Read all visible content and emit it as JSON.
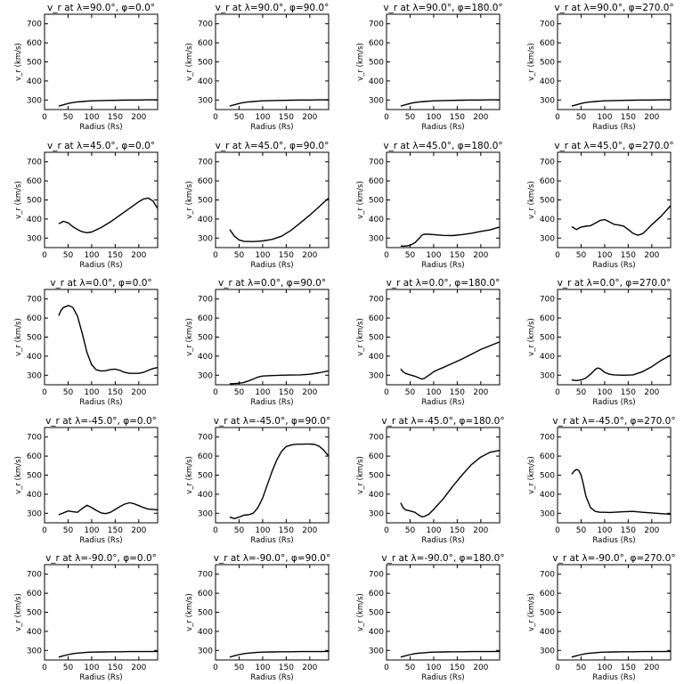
{
  "chart_data": [
    {
      "type": "line",
      "title": "v_r at λ=90.0°, φ=0.0°",
      "xlabel": "Radius (Rs)",
      "ylabel": "v_r (km/s)",
      "xlim": [
        0,
        240
      ],
      "ylim": [
        250,
        750
      ],
      "x": [
        30,
        40,
        50,
        60,
        70,
        80,
        90,
        100,
        120,
        140,
        160,
        180,
        200,
        220,
        240
      ],
      "y": [
        268,
        275,
        282,
        287,
        290,
        292,
        294,
        296,
        297,
        298,
        299,
        300,
        300,
        301,
        301
      ]
    },
    {
      "type": "line",
      "title": "v_r at λ=90.0°, φ=90.0°",
      "xlabel": "Radius (Rs)",
      "ylabel": "v_r (km/s)",
      "xlim": [
        0,
        240
      ],
      "ylim": [
        250,
        750
      ],
      "x": [
        30,
        40,
        50,
        60,
        70,
        80,
        90,
        100,
        120,
        140,
        160,
        180,
        200,
        220,
        240
      ],
      "y": [
        268,
        275,
        282,
        287,
        290,
        292,
        294,
        296,
        297,
        298,
        299,
        300,
        300,
        301,
        301
      ]
    },
    {
      "type": "line",
      "title": "v_r at λ=90.0°, φ=180.0°",
      "xlabel": "Radius (Rs)",
      "ylabel": "v_r (km/s)",
      "xlim": [
        0,
        240
      ],
      "ylim": [
        250,
        750
      ],
      "x": [
        30,
        40,
        50,
        60,
        70,
        80,
        90,
        100,
        120,
        140,
        160,
        180,
        200,
        220,
        240
      ],
      "y": [
        268,
        275,
        282,
        287,
        290,
        292,
        294,
        296,
        297,
        298,
        299,
        300,
        300,
        301,
        301
      ]
    },
    {
      "type": "line",
      "title": "v_r at λ=90.0°, φ=270.0°",
      "xlabel": "Radius (Rs)",
      "ylabel": "v_r (km/s)",
      "xlim": [
        0,
        240
      ],
      "ylim": [
        250,
        750
      ],
      "x": [
        30,
        40,
        50,
        60,
        70,
        80,
        90,
        100,
        120,
        140,
        160,
        180,
        200,
        220,
        240
      ],
      "y": [
        268,
        275,
        282,
        287,
        290,
        292,
        294,
        296,
        297,
        298,
        299,
        300,
        300,
        301,
        301
      ]
    },
    {
      "type": "line",
      "title": "v_r at λ=45.0°, φ=0.0°",
      "xlabel": "Radius (Rs)",
      "ylabel": "v_r (km/s)",
      "xlim": [
        0,
        240
      ],
      "ylim": [
        250,
        750
      ],
      "x": [
        30,
        40,
        50,
        60,
        70,
        80,
        90,
        100,
        120,
        140,
        160,
        180,
        200,
        210,
        220,
        230,
        240
      ],
      "y": [
        375,
        388,
        380,
        360,
        345,
        333,
        328,
        332,
        355,
        385,
        420,
        455,
        490,
        505,
        510,
        495,
        455
      ]
    },
    {
      "type": "line",
      "title": "v_r at λ=45.0°, φ=90.0°",
      "xlabel": "Radius (Rs)",
      "ylabel": "v_r (km/s)",
      "xlim": [
        0,
        240
      ],
      "ylim": [
        250,
        750
      ],
      "x": [
        30,
        40,
        50,
        60,
        70,
        80,
        90,
        100,
        120,
        140,
        160,
        180,
        200,
        220,
        240
      ],
      "y": [
        345,
        310,
        290,
        283,
        282,
        282,
        283,
        285,
        293,
        310,
        340,
        380,
        420,
        465,
        510
      ]
    },
    {
      "type": "line",
      "title": "v_r at λ=45.0°, φ=180.0°",
      "xlabel": "Radius (Rs)",
      "ylabel": "v_r (km/s)",
      "xlim": [
        0,
        240
      ],
      "ylim": [
        250,
        750
      ],
      "x": [
        30,
        40,
        50,
        60,
        70,
        75,
        80,
        90,
        100,
        120,
        140,
        160,
        180,
        200,
        220,
        240
      ],
      "y": [
        258,
        258,
        262,
        275,
        300,
        315,
        320,
        320,
        318,
        314,
        313,
        318,
        325,
        335,
        343,
        358
      ]
    },
    {
      "type": "line",
      "title": "v_r at λ=45.0°, φ=270.0°",
      "xlabel": "Radius (Rs)",
      "ylabel": "v_r (km/s)",
      "xlim": [
        0,
        240
      ],
      "ylim": [
        250,
        750
      ],
      "x": [
        30,
        40,
        50,
        60,
        70,
        80,
        90,
        100,
        110,
        120,
        130,
        140,
        150,
        160,
        170,
        180,
        190,
        200,
        220,
        240
      ],
      "y": [
        360,
        345,
        358,
        362,
        365,
        378,
        392,
        397,
        385,
        372,
        368,
        363,
        345,
        325,
        315,
        322,
        345,
        370,
        415,
        470
      ]
    },
    {
      "type": "line",
      "title": "v_r at λ=0.0°, φ=0.0°",
      "xlabel": "Radius (Rs)",
      "ylabel": "v_r (km/s)",
      "xlim": [
        0,
        240
      ],
      "ylim": [
        250,
        750
      ],
      "x": [
        30,
        35,
        40,
        50,
        55,
        60,
        70,
        80,
        90,
        100,
        110,
        120,
        130,
        140,
        150,
        160,
        170,
        180,
        190,
        200,
        210,
        220,
        230,
        240
      ],
      "y": [
        612,
        640,
        655,
        665,
        662,
        655,
        610,
        520,
        420,
        355,
        328,
        322,
        324,
        330,
        332,
        325,
        315,
        310,
        310,
        310,
        315,
        325,
        335,
        340
      ]
    },
    {
      "type": "line",
      "title": "v_r at λ=0.0°, φ=90.0°",
      "xlabel": "Radius (Rs)",
      "ylabel": "v_r (km/s)",
      "xlim": [
        0,
        240
      ],
      "ylim": [
        250,
        750
      ],
      "x": [
        30,
        40,
        50,
        60,
        70,
        80,
        90,
        100,
        120,
        140,
        160,
        180,
        200,
        220,
        240
      ],
      "y": [
        255,
        256,
        258,
        262,
        270,
        280,
        290,
        296,
        298,
        300,
        301,
        302,
        305,
        313,
        323
      ]
    },
    {
      "type": "line",
      "title": "v_r at λ=0.0°, φ=180.0°",
      "xlabel": "Radius (Rs)",
      "ylabel": "v_r (km/s)",
      "xlim": [
        0,
        240
      ],
      "ylim": [
        250,
        750
      ],
      "x": [
        30,
        35,
        40,
        50,
        60,
        70,
        75,
        80,
        90,
        100,
        110,
        120,
        140,
        160,
        180,
        200,
        220,
        240
      ],
      "y": [
        333,
        318,
        310,
        302,
        295,
        285,
        280,
        283,
        300,
        318,
        330,
        340,
        362,
        385,
        410,
        435,
        455,
        475
      ]
    },
    {
      "type": "line",
      "title": "v_r at λ=0.0°, φ=270.0°",
      "xlabel": "Radius (Rs)",
      "ylabel": "v_r (km/s)",
      "xlim": [
        0,
        240
      ],
      "ylim": [
        250,
        750
      ],
      "x": [
        30,
        40,
        50,
        60,
        70,
        80,
        85,
        90,
        100,
        110,
        120,
        140,
        160,
        180,
        200,
        220,
        240
      ],
      "y": [
        275,
        272,
        275,
        285,
        305,
        330,
        338,
        335,
        315,
        305,
        302,
        300,
        302,
        318,
        345,
        378,
        405
      ]
    },
    {
      "type": "line",
      "title": "v_r at λ=-45.0°, φ=0.0°",
      "xlabel": "Radius (Rs)",
      "ylabel": "v_r (km/s)",
      "xlim": [
        0,
        240
      ],
      "ylim": [
        250,
        750
      ],
      "x": [
        30,
        40,
        50,
        60,
        70,
        80,
        90,
        100,
        110,
        120,
        130,
        140,
        150,
        160,
        170,
        180,
        190,
        200,
        210,
        220,
        240
      ],
      "y": [
        292,
        302,
        312,
        308,
        305,
        325,
        342,
        330,
        315,
        302,
        298,
        305,
        320,
        335,
        348,
        355,
        350,
        340,
        330,
        322,
        318
      ]
    },
    {
      "type": "line",
      "title": "v_r at λ=-45.0°, φ=90.0°",
      "xlabel": "Radius (Rs)",
      "ylabel": "v_r (km/s)",
      "xlim": [
        0,
        240
      ],
      "ylim": [
        250,
        750
      ],
      "x": [
        30,
        40,
        50,
        60,
        70,
        80,
        90,
        100,
        110,
        120,
        130,
        140,
        150,
        160,
        170,
        180,
        190,
        200,
        210,
        220,
        230,
        240
      ],
      "y": [
        280,
        272,
        280,
        290,
        292,
        300,
        330,
        380,
        450,
        520,
        580,
        625,
        650,
        658,
        662,
        662,
        663,
        663,
        661,
        652,
        630,
        600
      ]
    },
    {
      "type": "line",
      "title": "v_r at λ=-45.0°, φ=180.0°",
      "xlabel": "Radius (Rs)",
      "ylabel": "v_r (km/s)",
      "xlim": [
        0,
        240
      ],
      "ylim": [
        250,
        750
      ],
      "x": [
        30,
        35,
        40,
        50,
        60,
        70,
        75,
        80,
        90,
        100,
        120,
        140,
        160,
        180,
        200,
        220,
        240
      ],
      "y": [
        355,
        330,
        318,
        312,
        305,
        288,
        282,
        283,
        295,
        320,
        375,
        440,
        500,
        555,
        595,
        620,
        630
      ]
    },
    {
      "type": "line",
      "title": "v_r at λ=-45.0°, φ=270.0°",
      "xlabel": "Radius (Rs)",
      "ylabel": "v_r (km/s)",
      "xlim": [
        0,
        240
      ],
      "ylim": [
        250,
        750
      ],
      "x": [
        30,
        35,
        40,
        45,
        50,
        55,
        60,
        70,
        80,
        90,
        100,
        110,
        120,
        140,
        160,
        180,
        200,
        220,
        240
      ],
      "y": [
        505,
        520,
        530,
        525,
        500,
        450,
        390,
        330,
        310,
        305,
        305,
        304,
        305,
        308,
        310,
        305,
        302,
        298,
        295
      ]
    },
    {
      "type": "line",
      "title": "v_r at λ=-90.0°, φ=0.0°",
      "xlabel": "Radius (Rs)",
      "ylabel": "v_r (km/s)",
      "xlim": [
        0,
        240
      ],
      "ylim": [
        250,
        750
      ],
      "x": [
        30,
        40,
        50,
        60,
        70,
        80,
        90,
        100,
        120,
        140,
        160,
        180,
        200,
        220,
        240
      ],
      "y": [
        265,
        272,
        278,
        283,
        286,
        288,
        290,
        291,
        292,
        293,
        293,
        294,
        294,
        294,
        295
      ]
    },
    {
      "type": "line",
      "title": "v_r at λ=-90.0°, φ=90.0°",
      "xlabel": "Radius (Rs)",
      "ylabel": "v_r (km/s)",
      "xlim": [
        0,
        240
      ],
      "ylim": [
        250,
        750
      ],
      "x": [
        30,
        40,
        50,
        60,
        70,
        80,
        90,
        100,
        120,
        140,
        160,
        180,
        200,
        220,
        240
      ],
      "y": [
        265,
        272,
        278,
        283,
        286,
        288,
        290,
        291,
        292,
        293,
        293,
        294,
        294,
        294,
        295
      ]
    },
    {
      "type": "line",
      "title": "v_r at λ=-90.0°, φ=180.0°",
      "xlabel": "Radius (Rs)",
      "ylabel": "v_r (km/s)",
      "xlim": [
        0,
        240
      ],
      "ylim": [
        250,
        750
      ],
      "x": [
        30,
        40,
        50,
        60,
        70,
        80,
        90,
        100,
        120,
        140,
        160,
        180,
        200,
        220,
        240
      ],
      "y": [
        265,
        272,
        278,
        283,
        286,
        288,
        290,
        291,
        292,
        293,
        293,
        294,
        294,
        294,
        295
      ]
    },
    {
      "type": "line",
      "title": "v_r at λ=-90.0°, φ=270.0°",
      "xlabel": "Radius (Rs)",
      "ylabel": "v_r (km/s)",
      "xlim": [
        0,
        240
      ],
      "ylim": [
        250,
        750
      ],
      "x": [
        30,
        40,
        50,
        60,
        70,
        80,
        90,
        100,
        120,
        140,
        160,
        180,
        200,
        220,
        240
      ],
      "y": [
        265,
        272,
        278,
        283,
        286,
        288,
        290,
        291,
        292,
        293,
        293,
        294,
        294,
        294,
        295
      ]
    }
  ],
  "x_ticks": [
    0,
    50,
    100,
    150,
    200
  ],
  "y_ticks": [
    300,
    400,
    500,
    600,
    700
  ]
}
